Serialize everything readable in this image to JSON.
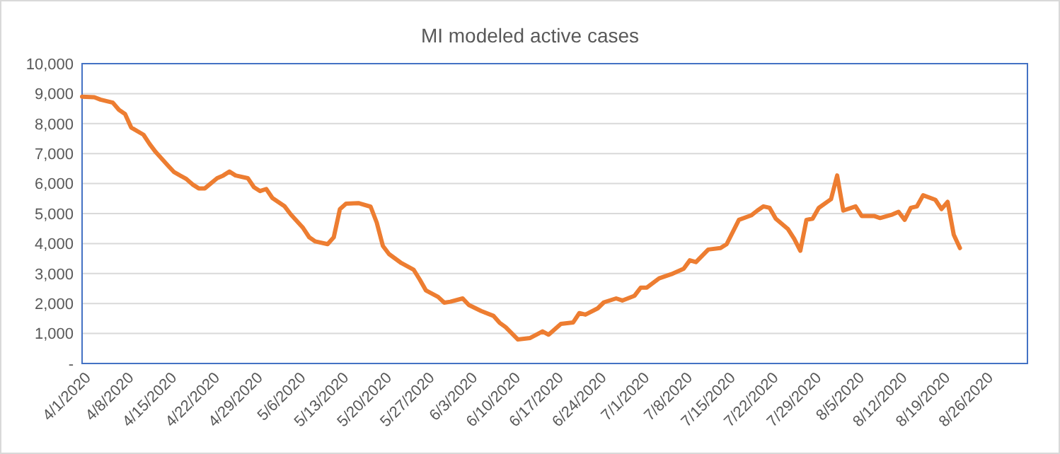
{
  "chart_data": {
    "type": "line",
    "title": "MI modeled active cases",
    "x": [
      "2020-04-01",
      "2020-04-03",
      "2020-04-04",
      "2020-04-06",
      "2020-04-07",
      "2020-04-08",
      "2020-04-09",
      "2020-04-11",
      "2020-04-12",
      "2020-04-13",
      "2020-04-15",
      "2020-04-16",
      "2020-04-18",
      "2020-04-19",
      "2020-04-20",
      "2020-04-21",
      "2020-04-23",
      "2020-04-24",
      "2020-04-25",
      "2020-04-26",
      "2020-04-28",
      "2020-04-29",
      "2020-04-30",
      "2020-05-01",
      "2020-05-02",
      "2020-05-04",
      "2020-05-05",
      "2020-05-07",
      "2020-05-08",
      "2020-05-09",
      "2020-05-11",
      "2020-05-12",
      "2020-05-13",
      "2020-05-14",
      "2020-05-16",
      "2020-05-18",
      "2020-05-19",
      "2020-05-20",
      "2020-05-21",
      "2020-05-23",
      "2020-05-25",
      "2020-05-26",
      "2020-05-27",
      "2020-05-29",
      "2020-05-30",
      "2020-05-31",
      "2020-06-02",
      "2020-06-03",
      "2020-06-05",
      "2020-06-07",
      "2020-06-08",
      "2020-06-09",
      "2020-06-11",
      "2020-06-13",
      "2020-06-15",
      "2020-06-16",
      "2020-06-18",
      "2020-06-20",
      "2020-06-21",
      "2020-06-22",
      "2020-06-24",
      "2020-06-25",
      "2020-06-27",
      "2020-06-28",
      "2020-06-30",
      "2020-07-01",
      "2020-07-02",
      "2020-07-04",
      "2020-07-06",
      "2020-07-08",
      "2020-07-09",
      "2020-07-10",
      "2020-07-12",
      "2020-07-14",
      "2020-07-15",
      "2020-07-17",
      "2020-07-19",
      "2020-07-20",
      "2020-07-21",
      "2020-07-22",
      "2020-07-23",
      "2020-07-25",
      "2020-07-26",
      "2020-07-27",
      "2020-07-28",
      "2020-07-29",
      "2020-07-30",
      "2020-08-01",
      "2020-08-02",
      "2020-08-03",
      "2020-08-05",
      "2020-08-06",
      "2020-08-08",
      "2020-08-09",
      "2020-08-11",
      "2020-08-12",
      "2020-08-13",
      "2020-08-14",
      "2020-08-15",
      "2020-08-16",
      "2020-08-18",
      "2020-08-19",
      "2020-08-20",
      "2020-08-21",
      "2020-08-22"
    ],
    "series": [
      {
        "color": "#ed7d31",
        "values": [
          8900,
          8880,
          8800,
          8700,
          8460,
          8320,
          7870,
          7630,
          7320,
          7050,
          6600,
          6380,
          6150,
          5970,
          5840,
          5840,
          6180,
          6270,
          6400,
          6270,
          6180,
          5880,
          5750,
          5820,
          5520,
          5240,
          4970,
          4520,
          4210,
          4070,
          3980,
          4210,
          5150,
          5330,
          5350,
          5230,
          4700,
          3920,
          3650,
          3350,
          3130,
          2800,
          2440,
          2220,
          2030,
          2060,
          2170,
          1950,
          1750,
          1590,
          1360,
          1210,
          800,
          850,
          1070,
          960,
          1320,
          1370,
          1680,
          1630,
          1840,
          2040,
          2170,
          2100,
          2260,
          2530,
          2530,
          2840,
          2980,
          3160,
          3440,
          3380,
          3800,
          3850,
          3980,
          4790,
          4940,
          5100,
          5240,
          5190,
          4830,
          4480,
          4160,
          3760,
          4790,
          4830,
          5190,
          5480,
          6270,
          5100,
          5240,
          4920,
          4920,
          4850,
          4970,
          5060,
          4790,
          5190,
          5240,
          5610,
          5460,
          5150,
          5390,
          4290,
          3850
        ]
      }
    ],
    "xlim": [
      "2020-04-01",
      "2020-09-02"
    ],
    "xticks": [
      {
        "value": "2020-04-01",
        "label": "4/1/2020"
      },
      {
        "value": "2020-04-08",
        "label": "4/8/2020"
      },
      {
        "value": "2020-04-15",
        "label": "4/15/2020"
      },
      {
        "value": "2020-04-22",
        "label": "4/22/2020"
      },
      {
        "value": "2020-04-29",
        "label": "4/29/2020"
      },
      {
        "value": "2020-05-06",
        "label": "5/6/2020"
      },
      {
        "value": "2020-05-13",
        "label": "5/13/2020"
      },
      {
        "value": "2020-05-20",
        "label": "5/20/2020"
      },
      {
        "value": "2020-05-27",
        "label": "5/27/2020"
      },
      {
        "value": "2020-06-03",
        "label": "6/3/2020"
      },
      {
        "value": "2020-06-10",
        "label": "6/10/2020"
      },
      {
        "value": "2020-06-17",
        "label": "6/17/2020"
      },
      {
        "value": "2020-06-24",
        "label": "6/24/2020"
      },
      {
        "value": "2020-07-01",
        "label": "7/1/2020"
      },
      {
        "value": "2020-07-08",
        "label": "7/8/2020"
      },
      {
        "value": "2020-07-15",
        "label": "7/15/2020"
      },
      {
        "value": "2020-07-22",
        "label": "7/22/2020"
      },
      {
        "value": "2020-07-29",
        "label": "7/29/2020"
      },
      {
        "value": "2020-08-05",
        "label": "8/5/2020"
      },
      {
        "value": "2020-08-12",
        "label": "8/12/2020"
      },
      {
        "value": "2020-08-19",
        "label": "8/19/2020"
      },
      {
        "value": "2020-08-26",
        "label": "8/26/2020"
      }
    ],
    "ylim": [
      0,
      10000
    ],
    "yticks": [
      {
        "value": 0,
        "label": "-"
      },
      {
        "value": 1000,
        "label": "1,000"
      },
      {
        "value": 2000,
        "label": "2,000"
      },
      {
        "value": 3000,
        "label": "3,000"
      },
      {
        "value": 4000,
        "label": "4,000"
      },
      {
        "value": 5000,
        "label": "5,000"
      },
      {
        "value": 6000,
        "label": "6,000"
      },
      {
        "value": 7000,
        "label": "7,000"
      },
      {
        "value": 8000,
        "label": "8,000"
      },
      {
        "value": 9000,
        "label": "9,000"
      },
      {
        "value": 10000,
        "label": "10,000"
      }
    ],
    "grid": "y",
    "marker": "none",
    "line_style": "solid"
  }
}
